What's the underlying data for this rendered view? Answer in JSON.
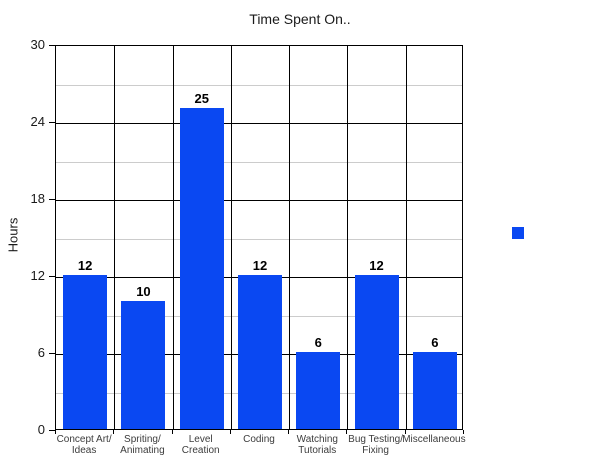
{
  "chart_data": {
    "type": "bar",
    "title": "Time Spent On..",
    "categories": [
      "Concept Art/\nIdeas",
      "Spriting/\nAnimating",
      "Level\nCreation",
      "Coding",
      "Watching\nTutorials",
      "Bug Testing/\nFixing",
      "Miscellaneous"
    ],
    "values": [
      12,
      10,
      25,
      12,
      6,
      12,
      6
    ],
    "xlabel": "",
    "ylabel": "Hours",
    "ylim": [
      0,
      30
    ],
    "ytick_values": [
      0,
      6,
      12,
      18,
      24,
      30
    ],
    "minor_gridline_values": [
      3,
      9,
      15,
      21,
      27
    ],
    "grid": true,
    "value_labels_shown": true,
    "bar_color": "#0a48f2",
    "value_label_color": "#000000",
    "major_grid_color": "#000000",
    "minor_grid_color": "#cccccc",
    "axis_text_color": "#1a1a1a",
    "category_text_color": "#3c3c3c",
    "legend": {
      "position": "right",
      "swatch_color": "#0a48f2",
      "label": ""
    }
  }
}
